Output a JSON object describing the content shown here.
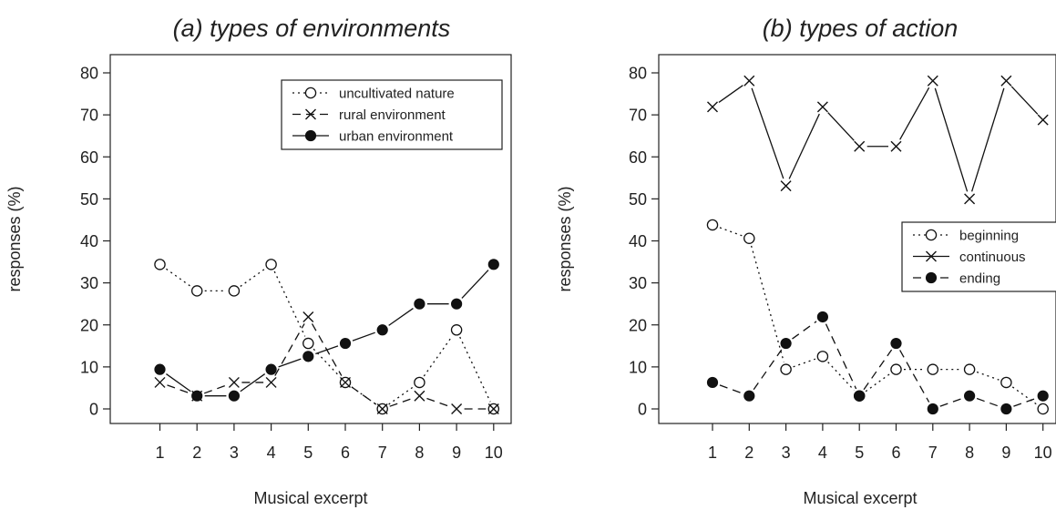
{
  "chart_data": [
    {
      "type": "line",
      "title": "(a) types of environments",
      "xlabel": "Musical excerpt",
      "ylabel": "responses (%)",
      "x": [
        1,
        2,
        3,
        4,
        5,
        6,
        7,
        8,
        9,
        10
      ],
      "ylim": [
        0,
        80
      ],
      "yticks": [
        0,
        10,
        20,
        30,
        40,
        50,
        60,
        70,
        80
      ],
      "grid": false,
      "legend_position": "top-right",
      "series": [
        {
          "name": "uncultivated nature",
          "line": "dotted",
          "marker": "open-circle",
          "values": [
            34.4,
            28.1,
            28.1,
            34.4,
            15.6,
            6.3,
            0,
            6.3,
            18.8,
            0
          ]
        },
        {
          "name": "rural environment",
          "line": "dashed",
          "marker": "x",
          "values": [
            6.3,
            3.1,
            6.3,
            6.3,
            21.9,
            6.3,
            0,
            3.1,
            0,
            0
          ]
        },
        {
          "name": "urban environment",
          "line": "solid",
          "marker": "filled-circle",
          "values": [
            9.4,
            3.1,
            3.1,
            9.4,
            12.5,
            15.6,
            18.8,
            25,
            25,
            34.4
          ]
        }
      ]
    },
    {
      "type": "line",
      "title": "(b) types of action",
      "xlabel": "Musical excerpt",
      "ylabel": "responses (%)",
      "x": [
        1,
        2,
        3,
        4,
        5,
        6,
        7,
        8,
        9,
        10
      ],
      "ylim": [
        0,
        80
      ],
      "yticks": [
        0,
        10,
        20,
        30,
        40,
        50,
        60,
        70,
        80
      ],
      "grid": false,
      "legend_position": "right",
      "series": [
        {
          "name": "beginning",
          "line": "dotted",
          "marker": "open-circle",
          "values": [
            43.8,
            40.6,
            9.4,
            12.5,
            3.1,
            9.4,
            9.4,
            9.4,
            6.3,
            0
          ]
        },
        {
          "name": "continuous",
          "line": "solid",
          "marker": "x",
          "values": [
            71.9,
            78.1,
            53.1,
            71.9,
            62.5,
            62.5,
            78.1,
            50,
            78.1,
            68.8
          ]
        },
        {
          "name": "ending",
          "line": "dashed",
          "marker": "filled-circle",
          "values": [
            6.3,
            3.1,
            15.6,
            21.9,
            3.1,
            15.6,
            0,
            3.1,
            0,
            3.1
          ]
        }
      ]
    }
  ]
}
